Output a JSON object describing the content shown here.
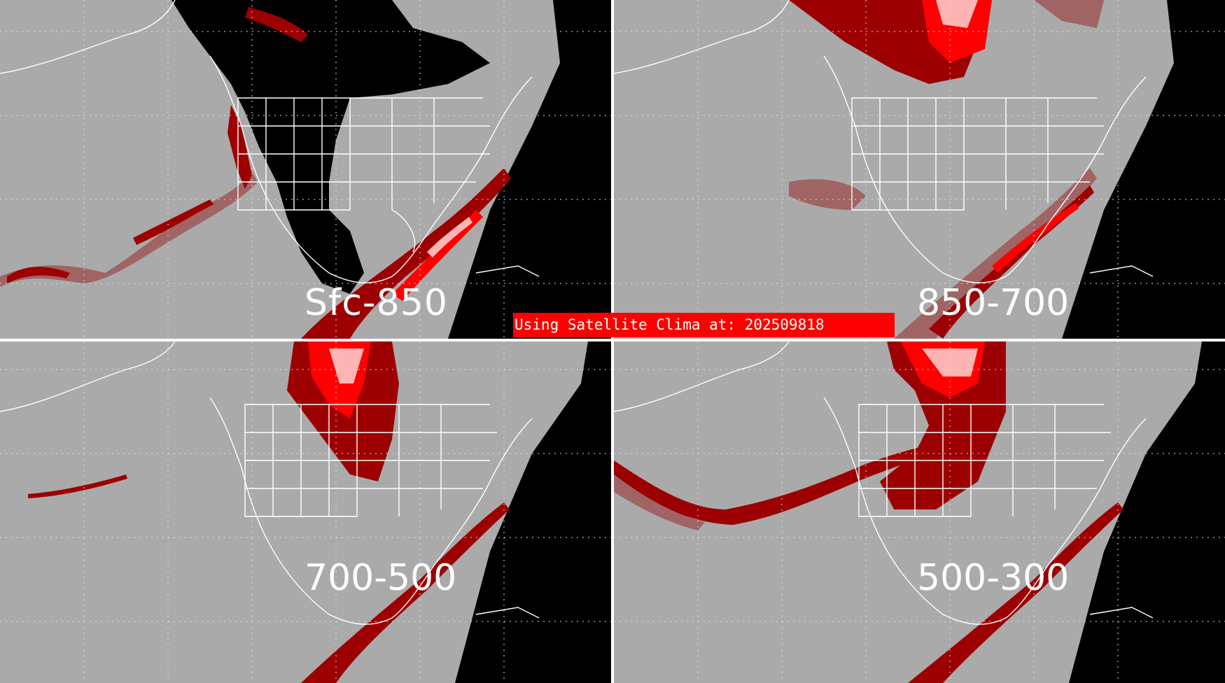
{
  "colors": {
    "ocean_land": "#aaaaaa",
    "space": "#000000",
    "lines": "#ffffff",
    "low": "#a06464",
    "mid": "#9c0000",
    "high": "#ff0000",
    "peak": "#ffb4b4",
    "banner": "#ff0000"
  },
  "panels": [
    {
      "id": "sfc-850",
      "label": "Sfc-850"
    },
    {
      "id": "850-700",
      "label": "850-700"
    },
    {
      "id": "700-500",
      "label": "700-500"
    },
    {
      "id": "500-300",
      "label": "500-300"
    }
  ],
  "banner": {
    "text": "Using Satellite Clima at: 202509818"
  }
}
